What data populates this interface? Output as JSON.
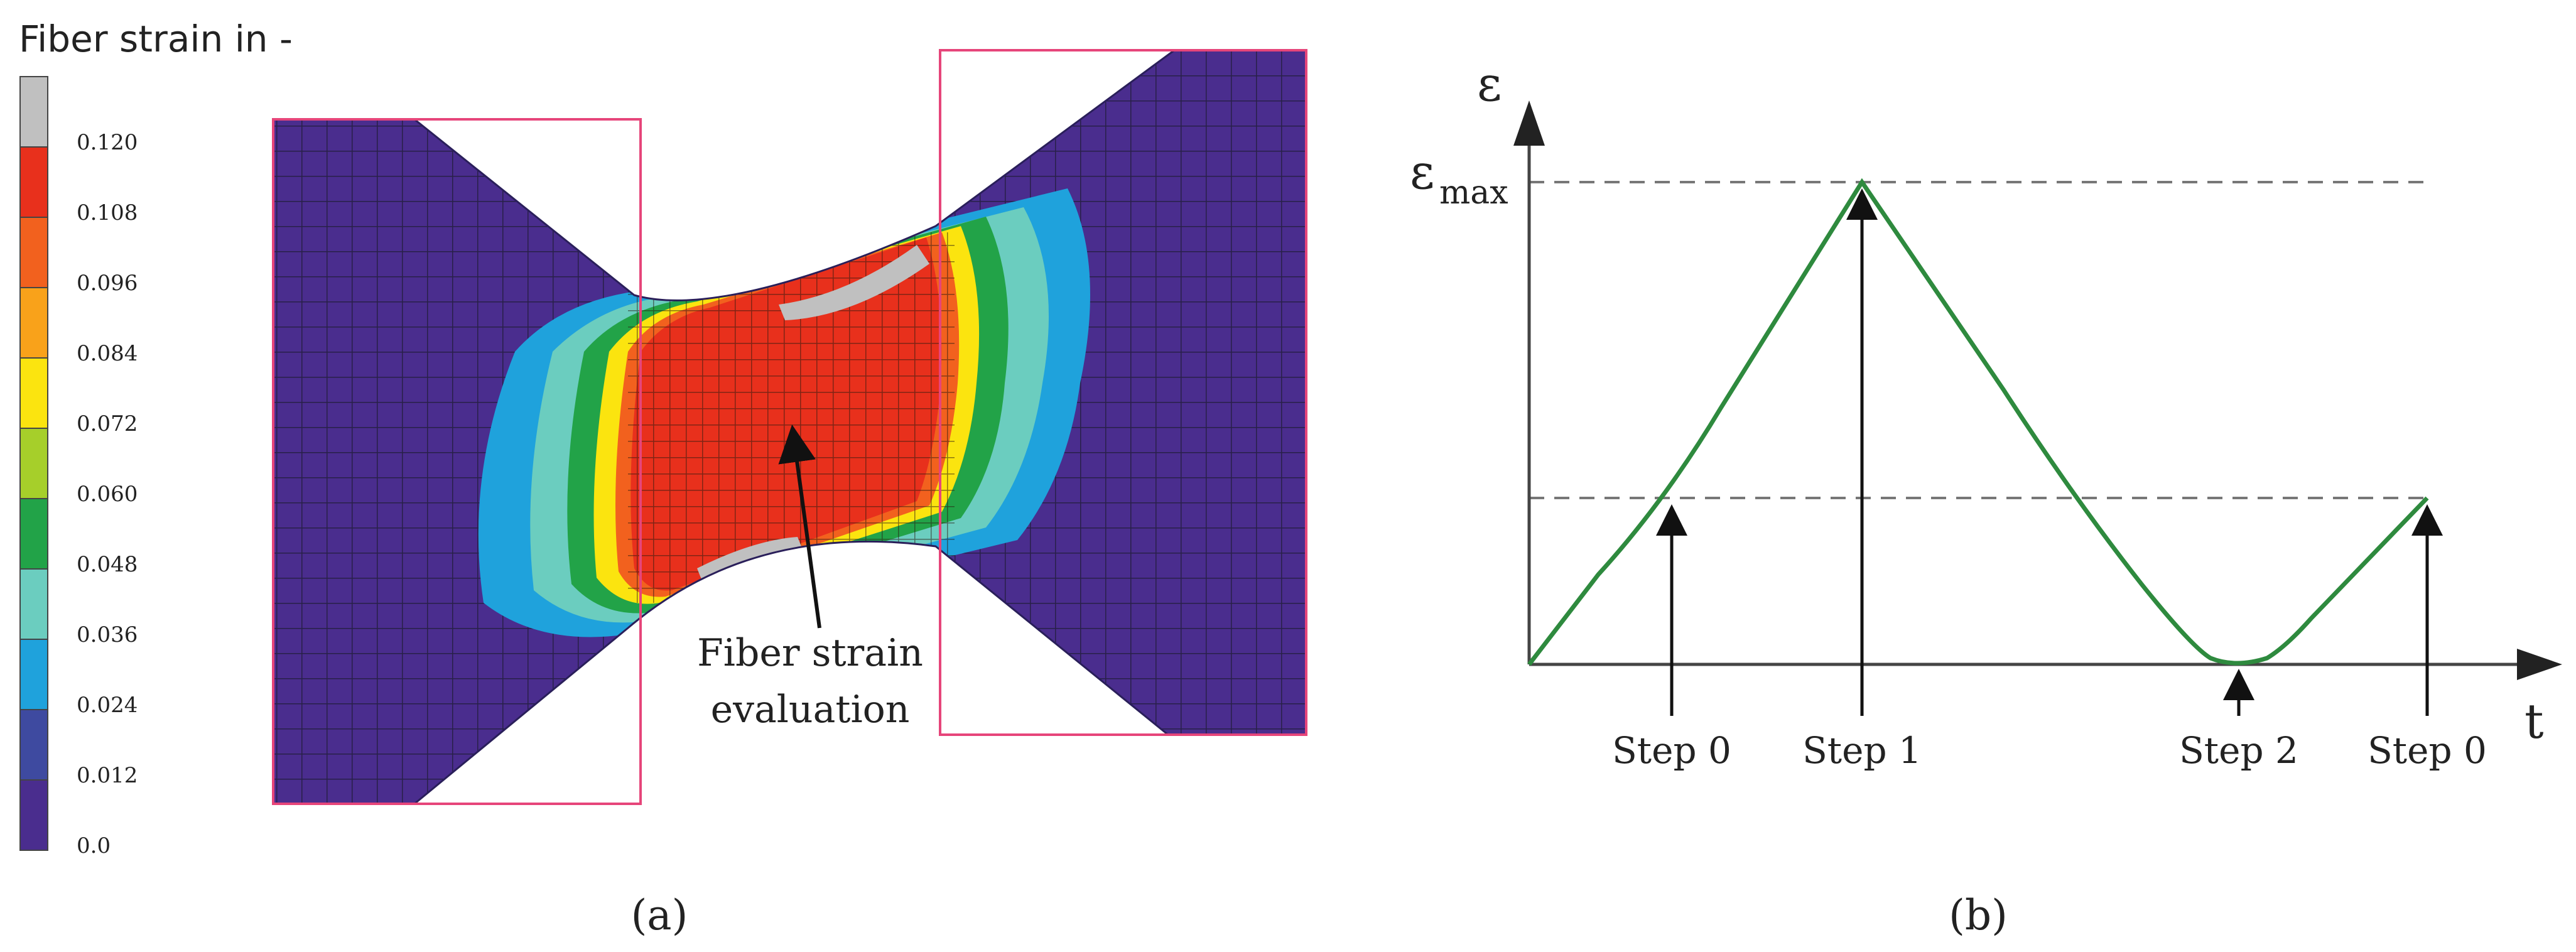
{
  "panel_a": {
    "legend_title": "Fiber strain in -",
    "legend_ticks": [
      "0.120",
      "0.108",
      "0.096",
      "0.084",
      "0.072",
      "0.060",
      "0.048",
      "0.036",
      "0.024",
      "0.012",
      "0.0"
    ],
    "legend_colors": [
      "#c0c0c0",
      "#e8301c",
      "#f2611e",
      "#f9a21a",
      "#fbe40f",
      "#a6cf2a",
      "#22a348",
      "#6bcdbf",
      "#1fa2dc",
      "#3e4aa0",
      "#4a2d8e"
    ],
    "annotation_line1": "Fiber strain",
    "annotation_line2": "evaluation",
    "caption": "(a)",
    "colors": {
      "background": "#4a2d8e",
      "clamp_box": "#e6457a",
      "mesh": "#1a1a2a"
    }
  },
  "panel_b": {
    "y_symbol": "ε",
    "max_symbol": "ε",
    "max_subscript": "max",
    "x_symbol": "t",
    "step_labels": [
      "Step 0",
      "Step 1",
      "Step 2",
      "Step 0"
    ],
    "caption": "(b)",
    "colors": {
      "curve": "#2e8a3e",
      "axis": "#444444",
      "guide": "#777777"
    }
  }
}
